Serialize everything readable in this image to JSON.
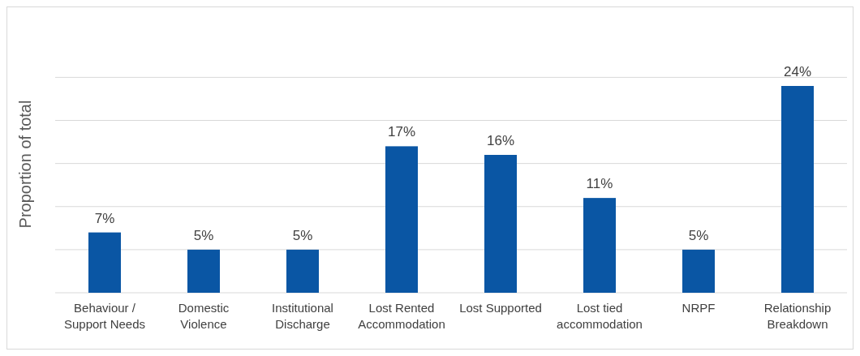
{
  "chart_data": {
    "type": "bar",
    "ylabel": "Proportion of total",
    "categories": [
      "Behaviour / Support Needs",
      "Domestic Violence",
      "Institutional Discharge",
      "Lost Rented Accommodation",
      "Lost Supported",
      "Lost tied accommodation",
      "NRPF",
      "Relationship Breakdown"
    ],
    "values": [
      7,
      5,
      5,
      17,
      16,
      11,
      5,
      24
    ],
    "value_labels": [
      "7%",
      "5%",
      "5%",
      "17%",
      "16%",
      "11%",
      "5%",
      "24%"
    ],
    "color": "#0a56a4",
    "tick_labels": "x",
    "grid": "y"
  }
}
